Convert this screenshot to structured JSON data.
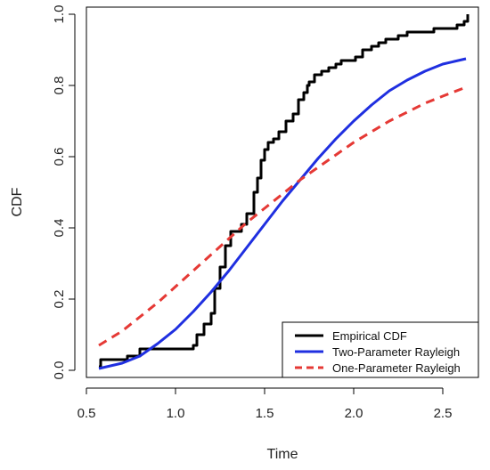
{
  "chart_data": {
    "type": "line",
    "title": "",
    "xlabel": "Time",
    "ylabel": "CDF",
    "xlim": [
      0.5,
      2.7
    ],
    "ylim": [
      0.0,
      1.0
    ],
    "x_ticks": [
      "0.5",
      "1.0",
      "1.5",
      "2.0",
      "2.5"
    ],
    "y_ticks": [
      "0.0",
      "0.2",
      "0.4",
      "0.6",
      "0.8",
      "1.0"
    ],
    "grid": false,
    "legend_position": "bottom-right",
    "series": [
      {
        "name": "Empirical CDF",
        "style": "step",
        "color": "#000000",
        "dash": "solid",
        "x": [
          0.57,
          0.58,
          0.73,
          0.8,
          0.95,
          1.1,
          1.12,
          1.16,
          1.2,
          1.22,
          1.25,
          1.28,
          1.31,
          1.37,
          1.4,
          1.44,
          1.46,
          1.48,
          1.5,
          1.52,
          1.55,
          1.58,
          1.62,
          1.66,
          1.69,
          1.72,
          1.74,
          1.75,
          1.78,
          1.82,
          1.86,
          1.9,
          1.93,
          1.96,
          2.01,
          2.05,
          2.1,
          2.14,
          2.18,
          2.25,
          2.3,
          2.39,
          2.45,
          2.55,
          2.58,
          2.62,
          2.64
        ],
        "y": [
          0.01,
          0.03,
          0.04,
          0.06,
          0.06,
          0.07,
          0.1,
          0.13,
          0.16,
          0.23,
          0.29,
          0.35,
          0.39,
          0.41,
          0.44,
          0.5,
          0.54,
          0.59,
          0.62,
          0.64,
          0.65,
          0.67,
          0.7,
          0.72,
          0.76,
          0.78,
          0.8,
          0.81,
          0.83,
          0.84,
          0.85,
          0.86,
          0.87,
          0.87,
          0.88,
          0.9,
          0.91,
          0.92,
          0.93,
          0.94,
          0.95,
          0.95,
          0.96,
          0.96,
          0.97,
          0.98,
          1.0
        ]
      },
      {
        "name": "Two-Parameter Rayleigh",
        "style": "smooth",
        "color": "#1f2fe0",
        "dash": "solid",
        "x": [
          0.57,
          0.7,
          0.8,
          0.9,
          1.0,
          1.1,
          1.2,
          1.3,
          1.4,
          1.5,
          1.6,
          1.7,
          1.8,
          1.9,
          2.0,
          2.1,
          2.2,
          2.3,
          2.4,
          2.5,
          2.63
        ],
        "y": [
          0.005,
          0.02,
          0.04,
          0.075,
          0.115,
          0.165,
          0.22,
          0.28,
          0.345,
          0.41,
          0.475,
          0.535,
          0.595,
          0.65,
          0.7,
          0.745,
          0.785,
          0.815,
          0.84,
          0.86,
          0.875
        ]
      },
      {
        "name": "One-Parameter Rayleigh",
        "style": "smooth",
        "color": "#e53935",
        "dash": "dashed",
        "x": [
          0.57,
          0.7,
          0.8,
          0.9,
          1.0,
          1.1,
          1.2,
          1.3,
          1.4,
          1.5,
          1.6,
          1.7,
          1.8,
          1.9,
          2.0,
          2.1,
          2.2,
          2.3,
          2.4,
          2.5,
          2.63
        ],
        "y": [
          0.07,
          0.11,
          0.15,
          0.19,
          0.235,
          0.28,
          0.325,
          0.37,
          0.415,
          0.455,
          0.495,
          0.535,
          0.57,
          0.605,
          0.64,
          0.67,
          0.7,
          0.725,
          0.75,
          0.77,
          0.795
        ]
      }
    ]
  }
}
